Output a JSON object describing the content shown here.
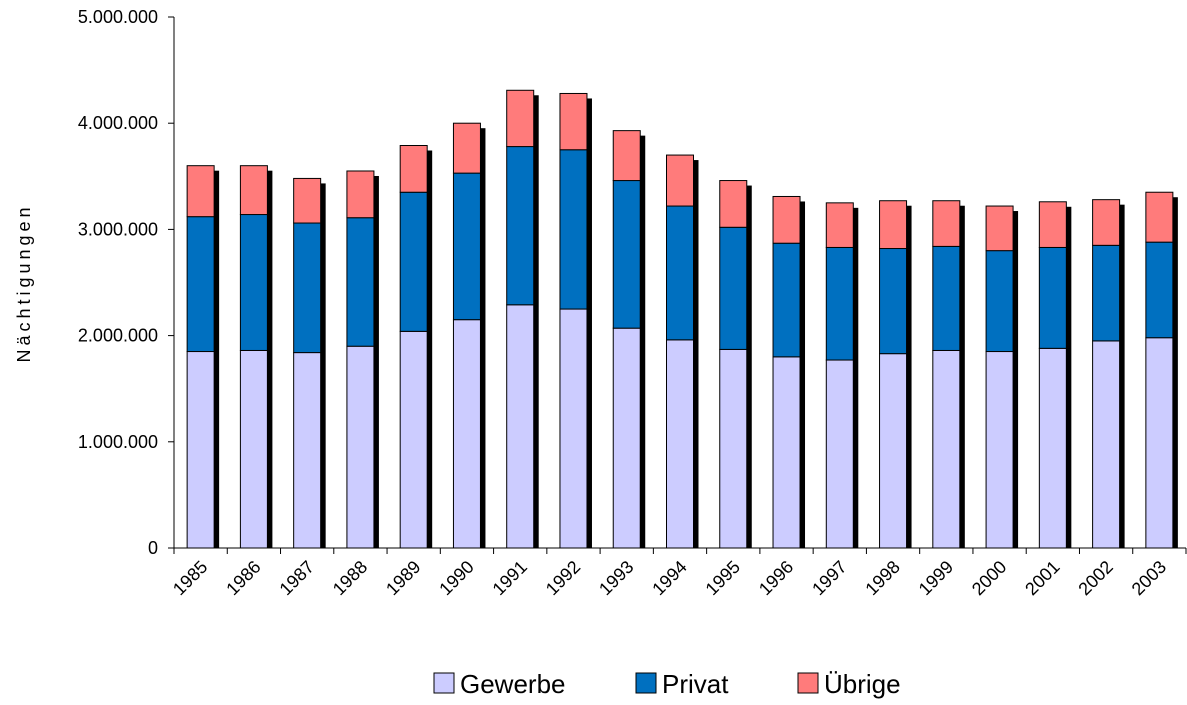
{
  "chart_data": {
    "type": "bar",
    "stacked": true,
    "title": "",
    "xlabel": "",
    "ylabel": "Nächtigungen",
    "ylim": [
      0,
      5000000
    ],
    "yticks": [
      0,
      1000000,
      2000000,
      3000000,
      4000000,
      5000000
    ],
    "ytick_labels": [
      "0",
      "1.000.000",
      "2.000.000",
      "3.000.000",
      "4.000.000",
      "5.000.000"
    ],
    "categories": [
      "1985",
      "1986",
      "1987",
      "1988",
      "1989",
      "1990",
      "1991",
      "1992",
      "1993",
      "1994",
      "1995",
      "1996",
      "1997",
      "1998",
      "1999",
      "2000",
      "2001",
      "2002",
      "2003"
    ],
    "series": [
      {
        "name": "Gewerbe",
        "color": "#ccccff",
        "values": [
          1850000,
          1860000,
          1840000,
          1900000,
          2040000,
          2150000,
          2290000,
          2250000,
          2070000,
          1960000,
          1870000,
          1800000,
          1770000,
          1830000,
          1860000,
          1850000,
          1880000,
          1950000,
          1980000
        ]
      },
      {
        "name": "Privat",
        "color": "#0070c0",
        "values": [
          1270000,
          1280000,
          1220000,
          1210000,
          1310000,
          1380000,
          1490000,
          1500000,
          1390000,
          1260000,
          1150000,
          1070000,
          1060000,
          990000,
          980000,
          950000,
          950000,
          900000,
          900000
        ]
      },
      {
        "name": "Übrige",
        "color": "#ff7b7b",
        "values": [
          480000,
          460000,
          420000,
          440000,
          440000,
          470000,
          530000,
          530000,
          470000,
          480000,
          440000,
          440000,
          420000,
          450000,
          430000,
          420000,
          430000,
          430000,
          470000
        ]
      }
    ],
    "legend_position": "bottom",
    "grid": false
  }
}
